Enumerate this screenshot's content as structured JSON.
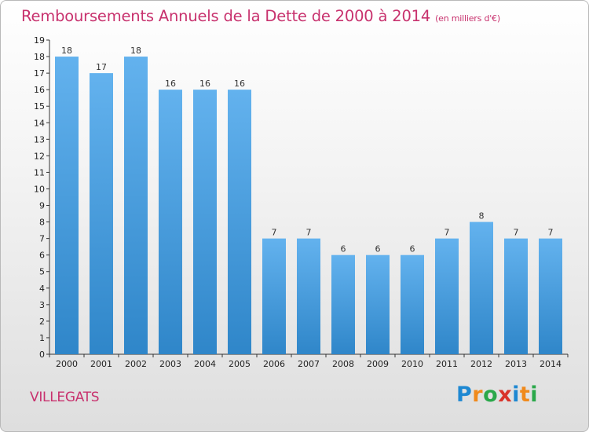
{
  "header": {
    "title": "Remboursements Annuels de la Dette de 2000 à 2014",
    "unit": "(en milliers d'€)"
  },
  "commune": "VILLEGATS",
  "logo": {
    "letters": [
      "P",
      "r",
      "o",
      "x",
      "i",
      "t",
      "i"
    ]
  },
  "colors": {
    "title": "#c8326e",
    "bar_top": "#63b2ee",
    "bar_bottom": "#2f86c9"
  },
  "chart_data": {
    "type": "bar",
    "title": "Remboursements Annuels de la Dette de 2000 à 2014",
    "xlabel": "",
    "ylabel": "",
    "categories": [
      "2000",
      "2001",
      "2002",
      "2003",
      "2004",
      "2005",
      "2006",
      "2007",
      "2008",
      "2009",
      "2010",
      "2011",
      "2012",
      "2013",
      "2014"
    ],
    "values": [
      18,
      17,
      18,
      16,
      16,
      16,
      7,
      7,
      6,
      6,
      6,
      7,
      8,
      7,
      7
    ],
    "ylim": [
      0,
      19
    ],
    "yticks": [
      0,
      1,
      2,
      3,
      4,
      5,
      6,
      7,
      8,
      9,
      10,
      11,
      12,
      13,
      14,
      15,
      16,
      17,
      18,
      19
    ],
    "grid": false,
    "legend": "none"
  }
}
